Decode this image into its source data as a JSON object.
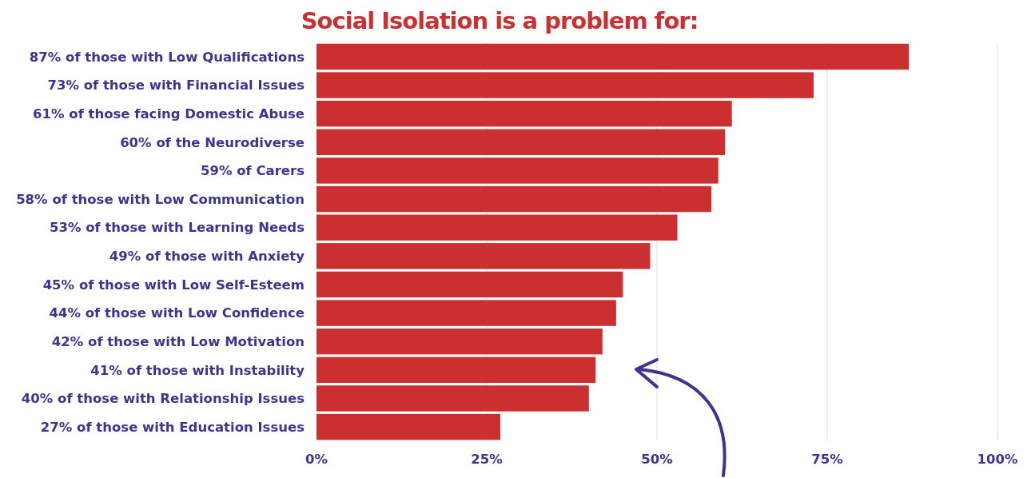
{
  "chart_data": {
    "type": "bar",
    "orientation": "horizontal",
    "title": "Social Isolation is a problem for:",
    "categories": [
      "87% of those with Low Qualifications",
      "73% of those with Financial Issues",
      "61% of those facing Domestic Abuse",
      "60% of the Neurodiverse",
      "59% of Carers",
      "58% of those with Low Communication",
      "53% of those with Learning Needs",
      "49% of those with Anxiety",
      "45% of those with Low Self-Esteem",
      "44% of those with Low Confidence",
      "42% of those with Low Motivation",
      "41% of those with Instability",
      "40% of those with Relationship Issues",
      "27% of those with Education Issues"
    ],
    "values": [
      87,
      73,
      61,
      60,
      59,
      58,
      53,
      49,
      45,
      44,
      42,
      41,
      40,
      27
    ],
    "color": "#cc2f2f",
    "xlim": [
      0,
      100
    ],
    "xticks": [
      {
        "value": 0,
        "label": "0%"
      },
      {
        "value": 25,
        "label": "25%"
      },
      {
        "value": 50,
        "label": "50%"
      },
      {
        "value": 75,
        "label": "75%"
      },
      {
        "value": 100,
        "label": "100%"
      }
    ],
    "grid": "x"
  }
}
